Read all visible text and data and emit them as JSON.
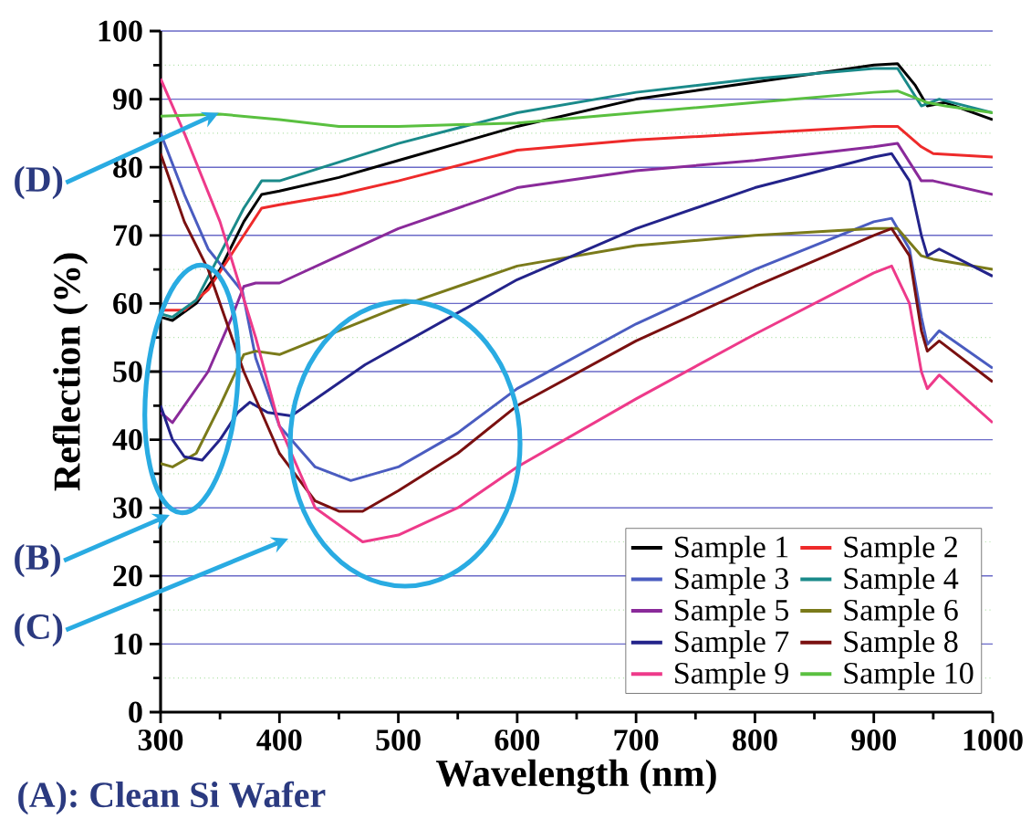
{
  "chart_data": {
    "type": "line",
    "xlabel": "Wavelength (nm)",
    "ylabel": "Reflection (%)",
    "xlim": [
      300,
      1000
    ],
    "ylim": [
      0,
      100
    ],
    "xticks": [
      300,
      {
        "value": 350,
        "label": null
      },
      400,
      {
        "value": 450,
        "label": null
      },
      500,
      {
        "value": 550,
        "label": null
      },
      600,
      {
        "value": 650,
        "label": null
      },
      700,
      {
        "value": 750,
        "label": null
      },
      800,
      {
        "value": 850,
        "label": null
      },
      900,
      {
        "value": 950,
        "label": null
      },
      1000
    ],
    "yticks": [
      0,
      {
        "value": 5,
        "label": null
      },
      10,
      {
        "value": 15,
        "label": null
      },
      20,
      {
        "value": 25,
        "label": null
      },
      30,
      {
        "value": 35,
        "label": null
      },
      40,
      {
        "value": 45,
        "label": null
      },
      50,
      {
        "value": 55,
        "label": null
      },
      60,
      {
        "value": 65,
        "label": null
      },
      70,
      {
        "value": 75,
        "label": null
      },
      80,
      {
        "value": 85,
        "label": null
      },
      90,
      {
        "value": 95,
        "label": null
      },
      100
    ],
    "grid": "y",
    "legend": "bottom right",
    "marker": "none",
    "annotations": [
      {
        "text": "(D)",
        "x": 349,
        "y": 88
      },
      "(B)",
      "(C)",
      "(A): Clean Si Wafer"
    ],
    "series": [
      {
        "name": "Sample 1",
        "color": "#000000",
        "x": [
          300,
          310,
          330,
          350,
          370,
          385,
          400,
          450,
          500,
          550,
          600,
          700,
          800,
          900,
          920,
          935,
          945,
          960,
          1000
        ],
        "values": [
          58,
          57.5,
          60,
          65,
          72,
          76,
          76.5,
          78.5,
          81,
          83.5,
          86,
          90,
          92.5,
          95,
          95.2,
          92,
          89,
          89.5,
          87
        ]
      },
      {
        "name": "Sample 2",
        "color": "#ee2a2a",
        "x": [
          300,
          320,
          340,
          370,
          385,
          400,
          450,
          500,
          600,
          700,
          800,
          900,
          920,
          940,
          950,
          1000
        ],
        "values": [
          59,
          59,
          62,
          70,
          74,
          74.5,
          76,
          78,
          82.5,
          84,
          85,
          86,
          86,
          83,
          82,
          81.5
        ]
      },
      {
        "name": "Sample 3",
        "color": "#4a5cc0",
        "x": [
          300,
          320,
          340,
          369,
          380,
          400,
          430,
          460,
          500,
          550,
          600,
          700,
          800,
          900,
          915,
          930,
          940,
          945,
          955,
          1000
        ],
        "values": [
          85,
          76,
          68,
          61.7,
          52,
          42,
          36,
          34,
          36,
          41,
          47.5,
          57,
          65,
          72,
          72.5,
          68,
          58,
          54,
          56,
          50.5
        ]
      },
      {
        "name": "Sample 4",
        "color": "#1a8a8a",
        "x": [
          300,
          310,
          330,
          370,
          385,
          400,
          500,
          600,
          700,
          800,
          900,
          920,
          940,
          955,
          1000
        ],
        "values": [
          58.5,
          58,
          60.5,
          74,
          78,
          78,
          83.5,
          88,
          91,
          93,
          94.5,
          94.5,
          89,
          90,
          88
        ]
      },
      {
        "name": "Sample 5",
        "color": "#8a2a9a",
        "x": [
          300,
          310,
          340,
          360,
          370,
          380,
          400,
          450,
          500,
          600,
          700,
          800,
          900,
          920,
          940,
          950,
          1000
        ],
        "values": [
          44,
          42.5,
          50,
          58,
          62.5,
          63,
          63,
          67,
          71,
          77,
          79.5,
          81,
          83,
          83.5,
          78,
          78,
          76
        ]
      },
      {
        "name": "Sample 6",
        "color": "#7a7a1a",
        "x": [
          300,
          310,
          330,
          350,
          370,
          380,
          400,
          450,
          500,
          600,
          700,
          800,
          900,
          920,
          940,
          950,
          1000
        ],
        "values": [
          36.5,
          36,
          38,
          45,
          52.5,
          53,
          52.5,
          56,
          59.5,
          65.5,
          68.5,
          70,
          71,
          71,
          67,
          66.5,
          65
        ]
      },
      {
        "name": "Sample 7",
        "color": "#23238a",
        "x": [
          300,
          310,
          320,
          335,
          350,
          365,
          375,
          390,
          410,
          472,
          600,
          700,
          800,
          900,
          915,
          930,
          940,
          945,
          955,
          1000
        ],
        "values": [
          45,
          40,
          37.5,
          37,
          40,
          44,
          45.5,
          44,
          43.5,
          51,
          63.5,
          71,
          77,
          81.5,
          82,
          78,
          70,
          67,
          68,
          64
        ]
      },
      {
        "name": "Sample 8",
        "color": "#7a1010",
        "x": [
          300,
          320,
          340,
          370,
          400,
          430,
          450,
          470,
          500,
          550,
          600,
          700,
          800,
          900,
          915,
          930,
          940,
          945,
          955,
          1000
        ],
        "values": [
          82,
          72,
          65,
          50,
          38,
          31,
          29.5,
          29.5,
          32.5,
          38,
          45,
          54.5,
          62.5,
          70,
          71,
          67,
          56,
          53,
          54.5,
          48.5
        ]
      },
      {
        "name": "Sample 9",
        "color": "#ee3a8a",
        "x": [
          300,
          320,
          350,
          380,
          400,
          430,
          470,
          500,
          550,
          600,
          700,
          800,
          900,
          915,
          930,
          940,
          945,
          955,
          1000
        ],
        "values": [
          93,
          85,
          72,
          55,
          42,
          30,
          25,
          26,
          30,
          36,
          46,
          55.5,
          64.5,
          65.5,
          60,
          50,
          47.5,
          49.5,
          42.5
        ]
      },
      {
        "name": "Sample 10",
        "color": "#5ac040",
        "x": [
          300,
          350,
          400,
          450,
          500,
          600,
          700,
          800,
          900,
          920,
          945,
          960,
          1000
        ],
        "values": [
          87.5,
          87.8,
          87,
          86,
          86,
          86.5,
          88,
          89.5,
          91,
          91.2,
          89.5,
          89,
          88
        ]
      }
    ]
  }
}
